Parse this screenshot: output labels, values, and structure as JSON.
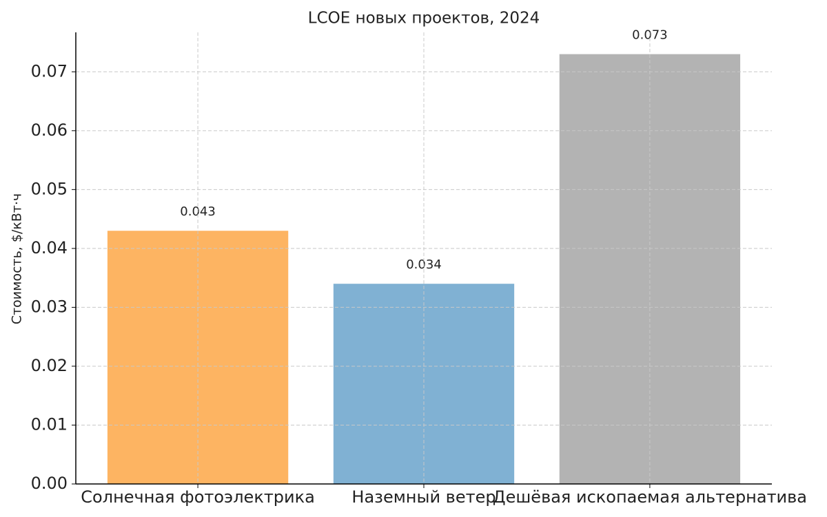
{
  "chart_data": {
    "type": "bar",
    "title": "LCOE новых проектов, 2024",
    "ylabel": "Стоимость, $/кВт·ч",
    "categories": [
      "Солнечная фотоэлектрика",
      "Наземный ветер",
      "Дешёвая ископаемая альтернатива"
    ],
    "values": [
      0.043,
      0.034,
      0.073
    ],
    "colors": [
      "#fdb462",
      "#80b1d3",
      "#b3b3b3"
    ],
    "ylim": [
      0,
      0.0767
    ],
    "yticks": [
      {
        "value": 0,
        "label": "0.00"
      },
      0.01,
      0.02,
      0.03,
      0.04,
      0.05,
      0.06,
      0.07
    ],
    "grid": true
  }
}
